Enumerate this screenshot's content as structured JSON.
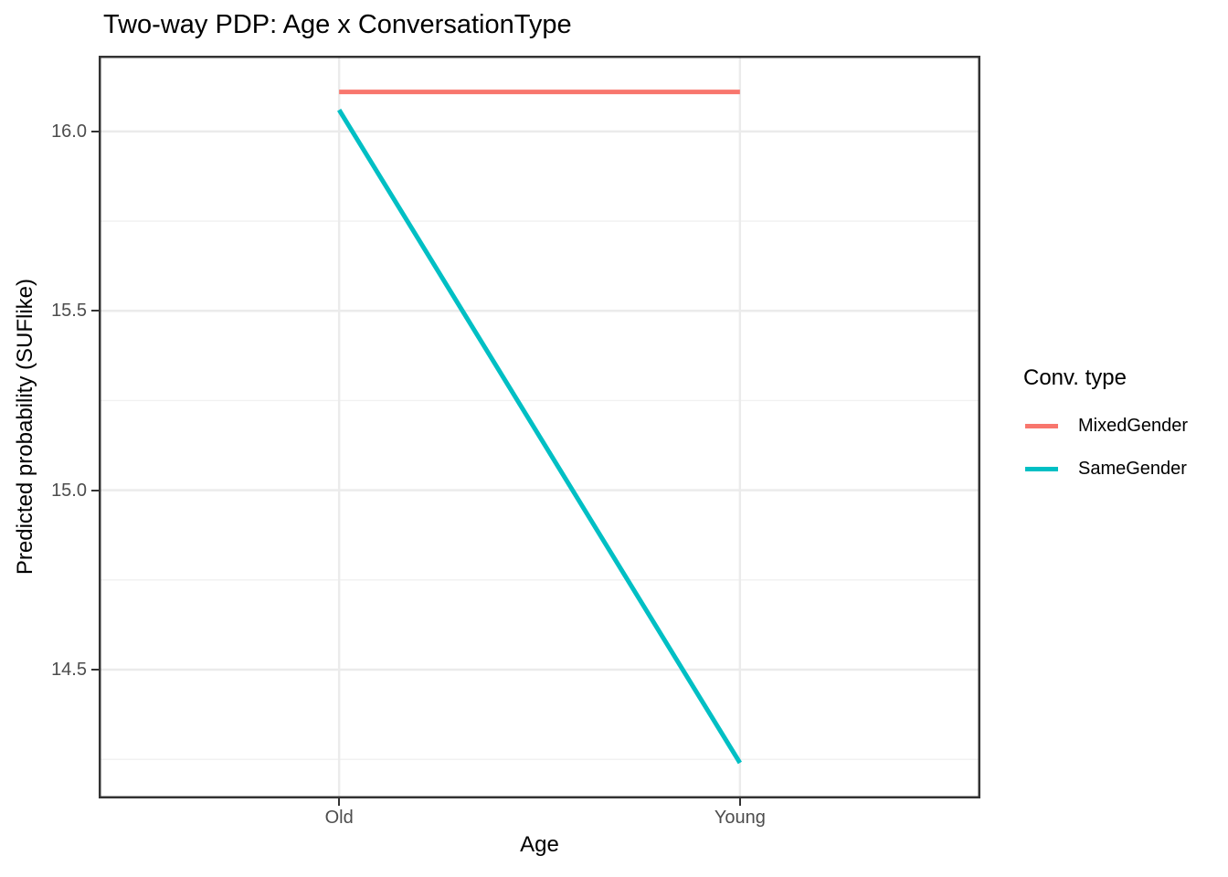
{
  "chart_data": {
    "type": "line",
    "title": "Two-way PDP: Age x ConversationType",
    "xlabel": "Age",
    "ylabel": "Predicted probability (SUFlike)",
    "categories": [
      "Old",
      "Young"
    ],
    "series": [
      {
        "name": "MixedGender",
        "color": "#F8766D",
        "values": [
          16.11,
          16.11
        ]
      },
      {
        "name": "SameGender",
        "color": "#00BFC4",
        "values": [
          16.06,
          14.24
        ]
      }
    ],
    "ylim": [
      14.141,
      16.211
    ],
    "yticks": [
      14.5,
      15.0,
      15.5,
      16.0
    ],
    "ytick_labels": [
      "14.5",
      "15.0",
      "15.5",
      "16.0"
    ],
    "grid": "horizontal major+minor, vertical major at categories",
    "legend_title": "Conv. type",
    "legend_position": "right"
  },
  "colors": {
    "background": "#FFFFFF",
    "panel_border": "#333333",
    "grid_major": "#EBEBEB",
    "grid_minor": "#F1F1F1",
    "tick_mark": "#333333",
    "tick_label": "#4D4D4D",
    "text": "#000000"
  }
}
